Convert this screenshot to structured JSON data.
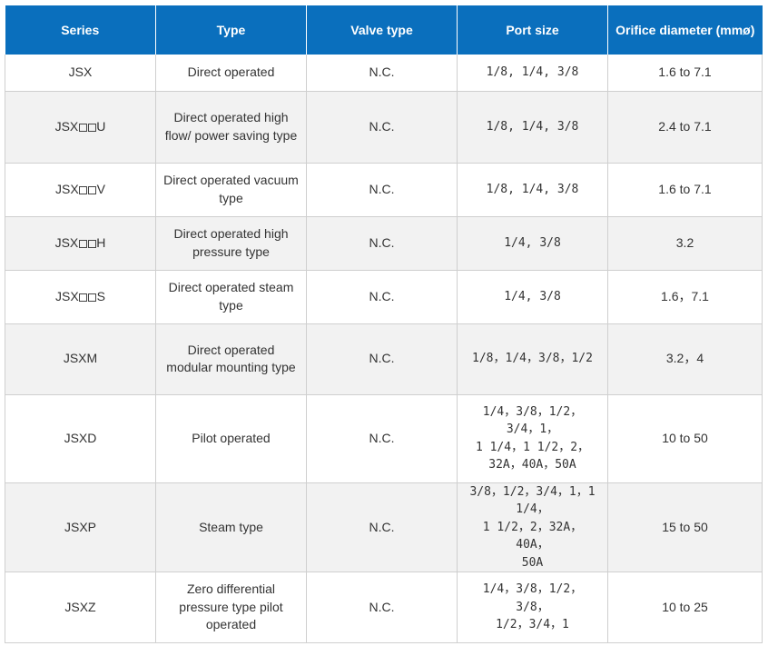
{
  "table": {
    "headers": [
      "Series",
      "Type",
      "Valve type",
      "Port size",
      "Orifice diameter (mmø)"
    ],
    "rows": [
      {
        "series_prefix": "JSX",
        "series_squares": 0,
        "series_suffix": "",
        "type": "Direct operated",
        "valve": "N.C.",
        "port": "1/8, 1/4, 3/8",
        "orifice": "1.6 to 7.1"
      },
      {
        "series_prefix": "JSX",
        "series_squares": 2,
        "series_suffix": "U",
        "type": "Direct operated high flow/ power saving type",
        "valve": "N.C.",
        "port": "1/8, 1/4, 3/8",
        "orifice": "2.4 to 7.1"
      },
      {
        "series_prefix": "JSX",
        "series_squares": 2,
        "series_suffix": "V",
        "type": "Direct operated vacuum type",
        "valve": "N.C.",
        "port": "1/8, 1/4, 3/8",
        "orifice": "1.6 to 7.1"
      },
      {
        "series_prefix": "JSX",
        "series_squares": 2,
        "series_suffix": "H",
        "type": "Direct operated high pressure type",
        "valve": "N.C.",
        "port": "1/4, 3/8",
        "orifice": "3.2"
      },
      {
        "series_prefix": "JSX",
        "series_squares": 2,
        "series_suffix": "S",
        "type": "Direct operated steam type",
        "valve": "N.C.",
        "port": "1/4, 3/8",
        "orifice": "1.6，7.1"
      },
      {
        "series_prefix": "JSXM",
        "series_squares": 0,
        "series_suffix": "",
        "type": "Direct operated modular mounting type",
        "valve": "N.C.",
        "port": "1/8，1/4，3/8，1/2",
        "orifice": "3.2，4"
      },
      {
        "series_prefix": "JSXD",
        "series_squares": 0,
        "series_suffix": "",
        "type": "Pilot operated",
        "valve": "N.C.",
        "port": "1/4，3/8，1/2，3/4，1，\n1 1/4，1 1/2，2，\n32A，40A，50A",
        "orifice": "10 to 50"
      },
      {
        "series_prefix": "JSXP",
        "series_squares": 0,
        "series_suffix": "",
        "type": "Steam type",
        "valve": "N.C.",
        "port": "3/8，1/2，3/4，1，1 1/4，\n1 1/2，2，32A，40A，\n50A",
        "orifice": "15 to 50"
      },
      {
        "series_prefix": "JSXZ",
        "series_squares": 0,
        "series_suffix": "",
        "type": "Zero differential pressure type pilot operated",
        "valve": "N.C.",
        "port": "1/4，3/8，1/2，3/8，\n1/2，3/4，1",
        "orifice": "10 to 25"
      }
    ]
  }
}
